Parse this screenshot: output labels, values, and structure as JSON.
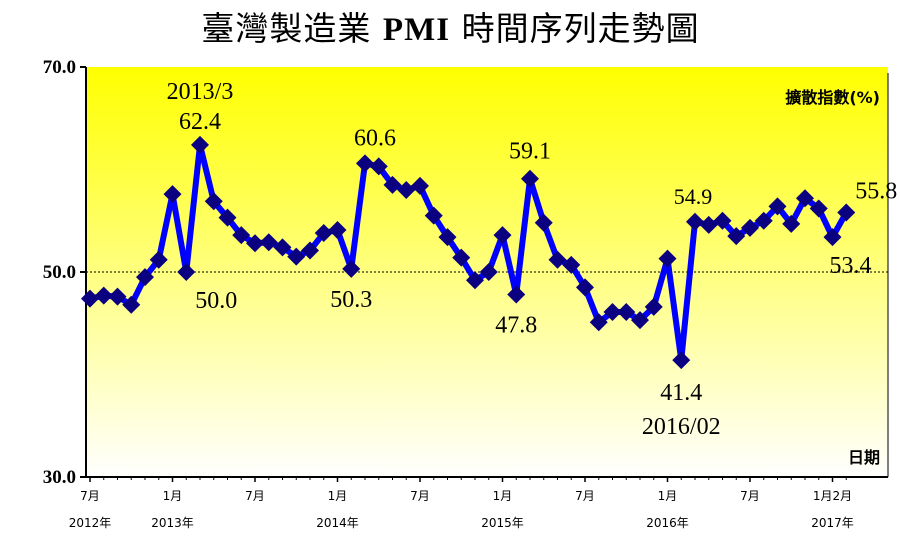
{
  "title_zh": "臺灣製造業",
  "title_en": "PMI",
  "title_zh2": "時間序列走勢圖",
  "chart_data": {
    "type": "line",
    "title": "臺灣製造業 PMI 時間序列走勢圖",
    "ylabel": "擴散指數(%)",
    "xlabel": "日期",
    "ylim": [
      30,
      70
    ],
    "yticks": [
      "30.0",
      "50.0",
      "70.0"
    ],
    "reference_line": 50,
    "x": [
      "2012/07",
      "2012/08",
      "2012/09",
      "2012/10",
      "2012/11",
      "2012/12",
      "2013/01",
      "2013/02",
      "2013/03",
      "2013/04",
      "2013/05",
      "2013/06",
      "2013/07",
      "2013/08",
      "2013/09",
      "2013/10",
      "2013/11",
      "2013/12",
      "2014/01",
      "2014/02",
      "2014/03",
      "2014/04",
      "2014/05",
      "2014/06",
      "2014/07",
      "2014/08",
      "2014/09",
      "2014/10",
      "2014/11",
      "2014/12",
      "2015/01",
      "2015/02",
      "2015/03",
      "2015/04",
      "2015/05",
      "2015/06",
      "2015/07",
      "2015/08",
      "2015/09",
      "2015/10",
      "2015/11",
      "2015/12",
      "2016/01",
      "2016/02",
      "2016/03",
      "2016/04",
      "2016/05",
      "2016/06",
      "2016/07",
      "2016/08",
      "2016/09",
      "2016/10",
      "2016/11",
      "2016/12",
      "2017/01",
      "2017/02"
    ],
    "series": [
      {
        "values": [
          47.4,
          47.7,
          47.6,
          46.8,
          49.5,
          51.2,
          57.6,
          50.0,
          62.4,
          56.9,
          55.3,
          53.6,
          52.8,
          52.9,
          52.4,
          51.5,
          52.1,
          53.8,
          54.1,
          50.3,
          60.6,
          60.3,
          58.5,
          58.0,
          58.4,
          55.5,
          53.4,
          51.4,
          49.2,
          50.0,
          53.6,
          47.8,
          59.1,
          54.8,
          51.2,
          50.7,
          48.5,
          45.1,
          46.1,
          46.1,
          45.3,
          46.6,
          51.3,
          41.4,
          54.9,
          54.6,
          55.0,
          53.5,
          54.3,
          55.0,
          56.4,
          54.7,
          57.2,
          56.2,
          53.4,
          55.8
        ],
        "color": "#0000ff",
        "marker_color": "#0a0080"
      }
    ],
    "x_tick_labels": [
      {
        "index": 0,
        "month": "7月",
        "year": "2012年"
      },
      {
        "index": 6,
        "month": "1月",
        "year": "2013年"
      },
      {
        "index": 12,
        "month": "7月",
        "year": ""
      },
      {
        "index": 18,
        "month": "1月",
        "year": "2014年"
      },
      {
        "index": 24,
        "month": "7月",
        "year": ""
      },
      {
        "index": 30,
        "month": "1月",
        "year": "2015年"
      },
      {
        "index": 36,
        "month": "7月",
        "year": ""
      },
      {
        "index": 42,
        "month": "1月",
        "year": "2016年"
      },
      {
        "index": 48,
        "month": "7月",
        "year": ""
      },
      {
        "index": 54,
        "month": "1月2月",
        "year": "2017年"
      }
    ],
    "annotations": [
      {
        "text": "2013/3",
        "index": 8
      },
      {
        "text": "62.4",
        "index": 8
      },
      {
        "text": "50.0",
        "index": 7
      },
      {
        "text": "60.6",
        "index": 20
      },
      {
        "text": "50.3",
        "index": 19
      },
      {
        "text": "59.1",
        "index": 32
      },
      {
        "text": "47.8",
        "index": 31
      },
      {
        "text": "54.9",
        "index": 44
      },
      {
        "text": "41.4",
        "index": 43
      },
      {
        "text": "2016/02",
        "index": 43
      },
      {
        "text": "55.8",
        "index": 55
      },
      {
        "text": "53.4",
        "index": 54
      }
    ],
    "background_gradient": [
      "#ffff00",
      "#ffffff"
    ],
    "grid": false
  }
}
